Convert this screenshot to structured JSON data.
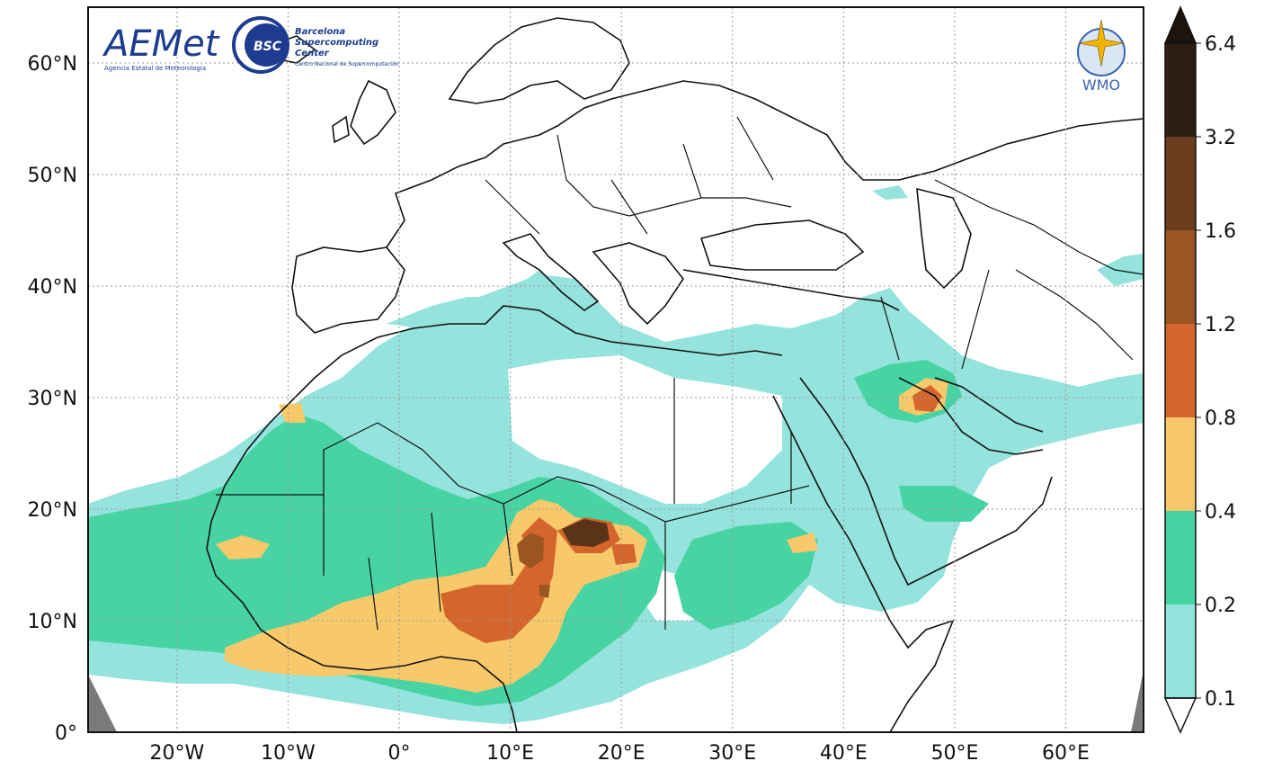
{
  "logos": {
    "aemet": {
      "name": "AEMet",
      "subtitle": "Agencia Estatal de Meteorología"
    },
    "bsc": {
      "badge": "BSC",
      "line1": "Barcelona",
      "line2": "Supercomputing",
      "line3": "Center",
      "subtitle": "Centro Nacional de Supercomputación"
    },
    "wmo": {
      "name": "WMO"
    }
  },
  "map": {
    "longitude_range": [
      -28,
      67
    ],
    "latitude_range": [
      0,
      65
    ],
    "grid": "dotted",
    "lon_ticks": [
      {
        "value": -20,
        "label": "20°W"
      },
      {
        "value": -10,
        "label": "10°W"
      },
      {
        "value": 0,
        "label": "0°"
      },
      {
        "value": 10,
        "label": "10°E"
      },
      {
        "value": 20,
        "label": "20°E"
      },
      {
        "value": 30,
        "label": "30°E"
      },
      {
        "value": 40,
        "label": "40°E"
      },
      {
        "value": 50,
        "label": "50°E"
      },
      {
        "value": 60,
        "label": "60°E"
      }
    ],
    "lat_ticks": [
      {
        "value": 0,
        "label": "0°"
      },
      {
        "value": 10,
        "label": "10°N"
      },
      {
        "value": 20,
        "label": "20°N"
      },
      {
        "value": 30,
        "label": "30°N"
      },
      {
        "value": 40,
        "label": "40°N"
      },
      {
        "value": 50,
        "label": "50°N"
      },
      {
        "value": 60,
        "label": "60°N"
      }
    ]
  },
  "colorbar": {
    "bins": [
      {
        "from": "0.1",
        "to": "0.2",
        "color": "#95e3dd"
      },
      {
        "from": "0.2",
        "to": "0.4",
        "color": "#48d3a3"
      },
      {
        "from": "0.4",
        "to": "0.8",
        "color": "#f8c96a"
      },
      {
        "from": "0.8",
        "to": "1.2",
        "color": "#d4652c"
      },
      {
        "from": "1.2",
        "to": "1.6",
        "color": "#9a5521"
      },
      {
        "from": "1.6",
        "to": "3.2",
        "color": "#6b3d1f"
      },
      {
        "from": "3.2",
        "to": "6.4",
        "color": "#2e1d12"
      }
    ],
    "labels": [
      "0.1",
      "0.2",
      "0.4",
      "0.8",
      "1.2",
      "1.6",
      "3.2",
      "6.4"
    ],
    "extend": "both"
  },
  "colors": {
    "light_teal": "#95e3dd",
    "teal": "#48d3a3",
    "yellow": "#f8c96a",
    "orange": "#d4652c",
    "brown": "#9a5521",
    "dark_brown": "#5a3418",
    "extend_low": "#ffffff",
    "extend_high": "#1e140c",
    "gridline": "#9a9a9a",
    "coast": "#111111"
  }
}
